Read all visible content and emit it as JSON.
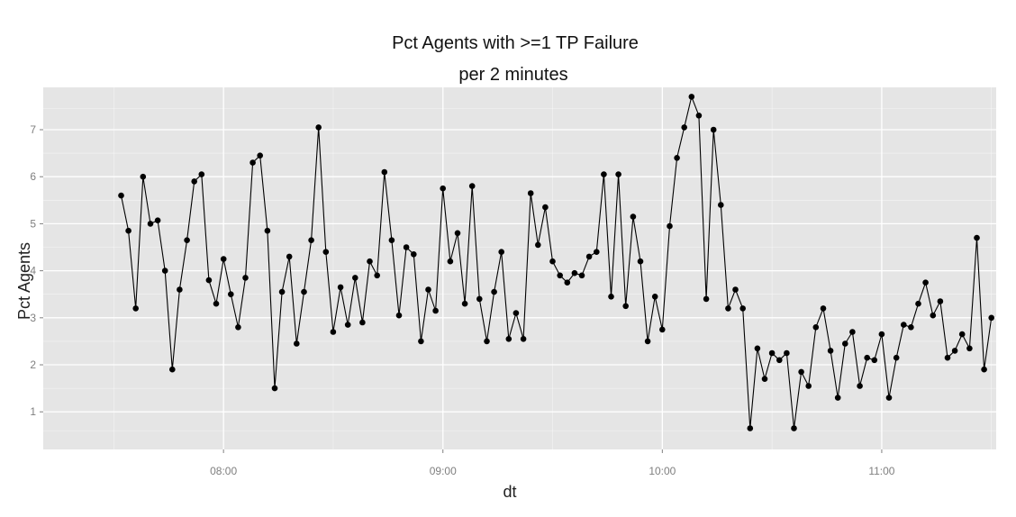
{
  "chart_data": {
    "type": "line",
    "title": "Pct Agents with >=1 TP Failure",
    "subtitle": "per 2 minutes",
    "xlabel": "dt",
    "ylabel": "Pct Agents",
    "x_ticks": [
      "08:00",
      "09:00",
      "10:00",
      "11:00"
    ],
    "x_tick_values": [
      480,
      540,
      600,
      660
    ],
    "y_ticks": [
      1,
      2,
      3,
      4,
      5,
      6,
      7
    ],
    "xlim": [
      430.7,
      691.3
    ],
    "ylim": [
      0.2,
      7.9
    ],
    "grid": true,
    "legend": "none",
    "colors": {
      "panel": "#e5e5e5",
      "grid": "#ffffff",
      "line": "#000000"
    },
    "x_interval_minutes": 2,
    "x_start": "07:32",
    "series": [
      {
        "values": [
          5.6,
          4.85,
          3.2,
          6.0,
          5.0,
          5.07,
          4.0,
          1.9,
          3.6,
          4.65,
          5.9,
          6.05,
          3.8,
          3.3,
          4.25,
          3.5,
          2.8,
          3.85,
          6.3,
          6.45,
          4.85,
          1.5,
          3.55,
          4.3,
          2.45,
          3.55,
          4.65,
          7.05,
          4.4,
          2.7,
          3.65,
          2.85,
          3.85,
          2.9,
          4.2,
          3.9,
          6.1,
          4.65,
          3.05,
          4.5,
          4.35,
          2.5,
          3.6,
          3.15,
          5.75,
          4.2,
          4.8,
          3.3,
          5.8,
          3.4,
          2.5,
          3.55,
          4.4,
          2.55,
          3.1,
          2.55,
          5.65,
          4.55,
          5.35,
          4.2,
          3.9,
          3.75,
          3.95,
          3.9,
          4.3,
          4.4,
          6.05,
          3.45,
          6.05,
          3.25,
          5.15,
          4.2,
          2.5,
          3.45,
          2.75,
          4.95,
          6.4,
          7.05,
          7.7,
          7.3,
          3.4,
          7.0,
          5.4,
          3.2,
          3.6,
          3.2,
          0.65,
          2.35,
          1.7,
          2.25,
          2.1,
          2.25,
          0.65,
          1.85,
          1.55,
          2.8,
          3.2,
          2.3,
          1.3,
          2.45,
          2.7,
          1.55,
          2.15,
          2.1,
          2.65,
          1.3,
          2.15,
          2.85,
          2.8,
          3.3,
          3.75,
          3.05,
          3.35,
          2.15,
          2.3,
          2.65,
          2.35,
          4.7,
          1.9,
          3.0
        ]
      }
    ]
  }
}
